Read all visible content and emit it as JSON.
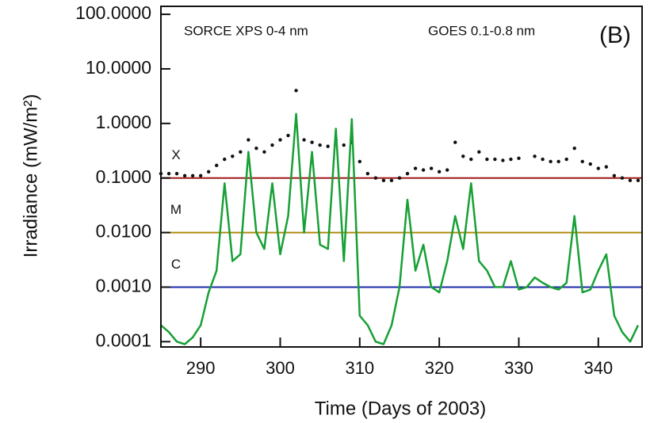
{
  "chart_data": {
    "type": "line",
    "xlabel": "Time (Days of 2003)",
    "ylabel": "Irradiance (mW/m²)",
    "panel_label": "(B)",
    "log_y": true,
    "xlim": [
      285,
      345.5
    ],
    "ylim": [
      8e-05,
      140
    ],
    "xticks": [
      290,
      300,
      310,
      320,
      330,
      340
    ],
    "yticks": [
      {
        "value": 100,
        "label": "100.0000"
      },
      {
        "value": 10,
        "label": "10.0000"
      },
      {
        "value": 1,
        "label": "1.0000"
      },
      {
        "value": 0.1,
        "label": "0.1000"
      },
      {
        "value": 0.01,
        "label": "0.0100"
      },
      {
        "value": 0.001,
        "label": "0.0010"
      },
      {
        "value": 0.0001,
        "label": "0.0001"
      }
    ],
    "thresholds": [
      {
        "label": "X",
        "value": 0.1,
        "color": "#a01818"
      },
      {
        "label": "M",
        "value": 0.01,
        "color": "#b08a10"
      },
      {
        "label": "C",
        "value": 0.001,
        "color": "#1a2aa8"
      }
    ],
    "x": [
      285,
      286,
      287,
      288,
      289,
      290,
      291,
      292,
      293,
      294,
      295,
      296,
      297,
      298,
      299,
      300,
      301,
      302,
      303,
      304,
      305,
      306,
      307,
      308,
      309,
      310,
      311,
      312,
      313,
      314,
      315,
      316,
      317,
      318,
      319,
      320,
      321,
      322,
      323,
      324,
      325,
      326,
      327,
      328,
      329,
      330,
      331,
      332,
      333,
      334,
      335,
      336,
      337,
      338,
      339,
      340,
      341,
      342,
      343,
      344,
      345
    ],
    "series": [
      {
        "name": "SORCE XPS 0-4 nm",
        "color": "#111111",
        "marker": "dots",
        "values": [
          0.12,
          0.12,
          0.12,
          0.11,
          0.11,
          0.11,
          0.13,
          0.17,
          0.22,
          0.25,
          0.3,
          0.5,
          0.35,
          0.3,
          0.4,
          0.5,
          0.6,
          4,
          0.5,
          0.45,
          0.4,
          0.38,
          0.5,
          0.4,
          0.45,
          0.2,
          0.12,
          0.1,
          0.09,
          0.09,
          0.1,
          0.12,
          0.15,
          0.14,
          0.15,
          0.13,
          0.14,
          0.45,
          0.25,
          0.22,
          0.3,
          0.22,
          0.22,
          0.21,
          0.22,
          0.23,
          null,
          0.25,
          0.22,
          0.2,
          0.2,
          0.22,
          0.35,
          0.2,
          0.18,
          0.15,
          0.16,
          0.11,
          0.1,
          0.09,
          0.09
        ]
      },
      {
        "name": "GOES 0.1-0.8 nm",
        "color": "#17a035",
        "marker": "line",
        "values": [
          0.0002,
          0.00015,
          0.0001,
          9e-05,
          0.00012,
          0.0002,
          0.0008,
          0.002,
          0.08,
          0.003,
          0.004,
          0.3,
          0.01,
          0.005,
          0.08,
          0.004,
          0.02,
          1.5,
          0.01,
          0.3,
          0.006,
          0.005,
          0.8,
          0.003,
          1.2,
          0.0003,
          0.0002,
          0.0001,
          9e-05,
          0.0002,
          0.001,
          0.04,
          0.002,
          0.006,
          0.001,
          0.0008,
          0.003,
          0.02,
          0.005,
          0.08,
          0.003,
          0.002,
          0.001,
          0.001,
          0.003,
          0.0009,
          0.001,
          0.0015,
          0.0012,
          0.001,
          0.0009,
          0.0012,
          0.02,
          0.0008,
          0.0009,
          0.002,
          0.004,
          0.0003,
          0.00015,
          0.0001,
          0.0002
        ]
      }
    ]
  }
}
